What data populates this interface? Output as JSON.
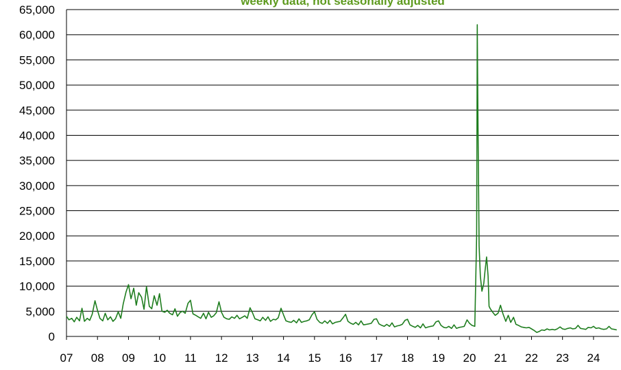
{
  "chart_data": {
    "type": "line",
    "subtitle": "weekly data, not seasonally adjusted",
    "color": "#1e7d1e",
    "x": [
      2007.0,
      2007.08,
      2007.17,
      2007.25,
      2007.33,
      2007.42,
      2007.5,
      2007.58,
      2007.67,
      2007.75,
      2007.83,
      2007.92,
      2008.0,
      2008.08,
      2008.17,
      2008.25,
      2008.33,
      2008.42,
      2008.5,
      2008.58,
      2008.67,
      2008.75,
      2008.83,
      2008.92,
      2009.0,
      2009.08,
      2009.17,
      2009.25,
      2009.33,
      2009.42,
      2009.5,
      2009.58,
      2009.67,
      2009.75,
      2009.83,
      2009.92,
      2010.0,
      2010.08,
      2010.17,
      2010.25,
      2010.33,
      2010.42,
      2010.5,
      2010.58,
      2010.67,
      2010.75,
      2010.83,
      2010.92,
      2011.0,
      2011.08,
      2011.17,
      2011.25,
      2011.33,
      2011.42,
      2011.5,
      2011.58,
      2011.67,
      2011.75,
      2011.83,
      2011.92,
      2012.0,
      2012.08,
      2012.17,
      2012.25,
      2012.33,
      2012.42,
      2012.5,
      2012.58,
      2012.67,
      2012.75,
      2012.83,
      2012.92,
      2013.0,
      2013.08,
      2013.17,
      2013.25,
      2013.33,
      2013.42,
      2013.5,
      2013.58,
      2013.67,
      2013.75,
      2013.83,
      2013.92,
      2014.0,
      2014.08,
      2014.17,
      2014.25,
      2014.33,
      2014.42,
      2014.5,
      2014.58,
      2014.67,
      2014.75,
      2014.83,
      2014.92,
      2015.0,
      2015.08,
      2015.17,
      2015.25,
      2015.33,
      2015.42,
      2015.5,
      2015.58,
      2015.67,
      2015.75,
      2015.83,
      2015.92,
      2016.0,
      2016.08,
      2016.17,
      2016.25,
      2016.33,
      2016.42,
      2016.5,
      2016.58,
      2016.67,
      2016.75,
      2016.83,
      2016.92,
      2017.0,
      2017.08,
      2017.17,
      2017.25,
      2017.33,
      2017.42,
      2017.5,
      2017.58,
      2017.67,
      2017.75,
      2017.83,
      2017.92,
      2018.0,
      2018.08,
      2018.17,
      2018.25,
      2018.33,
      2018.42,
      2018.5,
      2018.58,
      2018.67,
      2018.75,
      2018.83,
      2018.92,
      2019.0,
      2019.08,
      2019.17,
      2019.25,
      2019.33,
      2019.42,
      2019.5,
      2019.58,
      2019.67,
      2019.75,
      2019.83,
      2019.92,
      2020.0,
      2020.08,
      2020.17,
      2020.23,
      2020.25,
      2020.27,
      2020.31,
      2020.35,
      2020.4,
      2020.46,
      2020.5,
      2020.55,
      2020.6,
      2020.63,
      2020.67,
      2020.75,
      2020.83,
      2020.92,
      2021.0,
      2021.08,
      2021.17,
      2021.25,
      2021.33,
      2021.42,
      2021.5,
      2021.58,
      2021.67,
      2021.75,
      2021.83,
      2021.92,
      2022.0,
      2022.08,
      2022.17,
      2022.25,
      2022.33,
      2022.42,
      2022.5,
      2022.58,
      2022.67,
      2022.75,
      2022.83,
      2022.92,
      2023.0,
      2023.08,
      2023.17,
      2023.25,
      2023.33,
      2023.42,
      2023.5,
      2023.58,
      2023.67,
      2023.75,
      2023.83,
      2023.92,
      2024.0,
      2024.08,
      2024.17,
      2024.25,
      2024.33,
      2024.42,
      2024.5,
      2024.58,
      2024.67,
      2024.75
    ],
    "values": [
      4000,
      3300,
      3600,
      2900,
      3800,
      3100,
      5600,
      3000,
      3600,
      3200,
      4400,
      7100,
      5200,
      3600,
      3100,
      4600,
      3300,
      3900,
      3000,
      3500,
      4900,
      3600,
      6500,
      8800,
      10300,
      7500,
      9600,
      6200,
      8700,
      7800,
      5400,
      9900,
      6000,
      5500,
      8100,
      6200,
      8500,
      5000,
      4800,
      5200,
      4600,
      4300,
      5500,
      4000,
      4800,
      5000,
      4600,
      6600,
      7200,
      4500,
      4200,
      3900,
      3600,
      4600,
      3500,
      4800,
      3800,
      4100,
      4700,
      6900,
      4800,
      3800,
      3500,
      3400,
      3900,
      3600,
      4200,
      3500,
      3800,
      4100,
      3600,
      5700,
      4700,
      3500,
      3300,
      3100,
      3800,
      3200,
      3900,
      3000,
      3400,
      3300,
      3700,
      5600,
      4300,
      3100,
      2900,
      2800,
      3200,
      2700,
      3500,
      2800,
      3000,
      3100,
      3300,
      4300,
      4900,
      3400,
      2800,
      2600,
      3100,
      2600,
      3200,
      2500,
      2800,
      2900,
      3000,
      3700,
      4400,
      3000,
      2600,
      2400,
      2800,
      2300,
      3100,
      2300,
      2400,
      2500,
      2600,
      3400,
      3500,
      2500,
      2200,
      2000,
      2400,
      2000,
      2700,
      1900,
      2100,
      2200,
      2400,
      3200,
      3400,
      2300,
      2000,
      1800,
      2200,
      1700,
      2500,
      1700,
      1900,
      2000,
      2100,
      2900,
      3100,
      2200,
      1800,
      1700,
      2000,
      1600,
      2300,
      1600,
      1800,
      1900,
      2000,
      3300,
      2600,
      2200,
      2000,
      20000,
      62000,
      45000,
      18000,
      12000,
      9000,
      10500,
      13000,
      15800,
      12000,
      6000,
      5500,
      4800,
      4200,
      4600,
      6200,
      4500,
      3000,
      4200,
      2800,
      3800,
      2400,
      2200,
      1900,
      1800,
      1700,
      1800,
      1500,
      1200,
      800,
      1000,
      1300,
      1200,
      1500,
      1300,
      1400,
      1300,
      1500,
      1900,
      1500,
      1400,
      1600,
      1700,
      1500,
      1600,
      2200,
      1600,
      1500,
      1400,
      1800,
      1700,
      2000,
      1600,
      1700,
      1500,
      1400,
      1500,
      2000,
      1500,
      1400,
      1300
    ],
    "xlim": [
      2007,
      2024.82
    ],
    "xticks": [
      {
        "value": 2007,
        "label": "07"
      },
      {
        "value": 2008,
        "label": "08"
      },
      {
        "value": 2009,
        "label": "09"
      },
      {
        "value": 2010,
        "label": "10"
      },
      {
        "value": 2011,
        "label": "11"
      },
      {
        "value": 2012,
        "label": "12"
      },
      {
        "value": 2013,
        "label": "13"
      },
      {
        "value": 2014,
        "label": "14"
      },
      {
        "value": 2015,
        "label": "15"
      },
      {
        "value": 2016,
        "label": "16"
      },
      {
        "value": 2017,
        "label": "17"
      },
      {
        "value": 2018,
        "label": "18"
      },
      {
        "value": 2019,
        "label": "19"
      },
      {
        "value": 2020,
        "label": "20"
      },
      {
        "value": 2021,
        "label": "21"
      },
      {
        "value": 2022,
        "label": "22"
      },
      {
        "value": 2023,
        "label": "23"
      },
      {
        "value": 2024,
        "label": "24"
      }
    ],
    "ylim": [
      0,
      65000
    ],
    "yticks": [
      0,
      {
        "value": 5000,
        "label": "5,000"
      },
      {
        "value": 10000,
        "label": "10,000"
      },
      {
        "value": 15000,
        "label": "15,000"
      },
      {
        "value": 20000,
        "label": "20,000"
      },
      {
        "value": 25000,
        "label": "25,000"
      },
      {
        "value": 30000,
        "label": "30,000"
      },
      {
        "value": 35000,
        "label": "35,000"
      },
      {
        "value": 40000,
        "label": "40,000"
      },
      {
        "value": 45000,
        "label": "45,000"
      },
      {
        "value": 50000,
        "label": "50,000"
      },
      {
        "value": 55000,
        "label": "55,000"
      },
      {
        "value": 60000,
        "label": "60,000"
      },
      {
        "value": 65000,
        "label": "65,000"
      }
    ],
    "grid": true
  }
}
